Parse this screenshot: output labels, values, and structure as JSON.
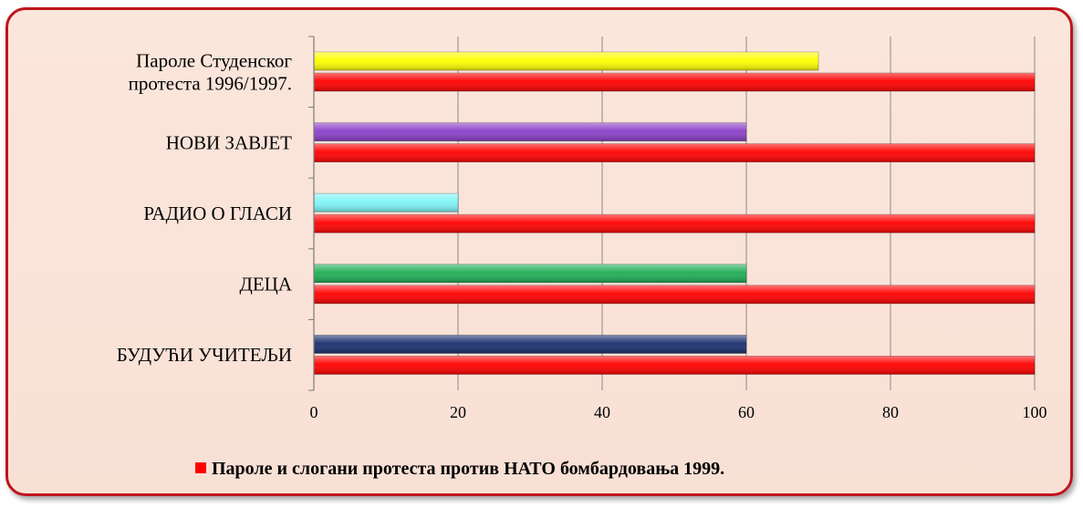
{
  "chart_data": {
    "type": "bar",
    "orientation": "horizontal",
    "xlim": [
      0,
      100
    ],
    "x_ticks": [
      "0",
      "20",
      "40",
      "60",
      "80",
      "100"
    ],
    "grid": true,
    "legend_position": "bottom",
    "categories": [
      {
        "label_lines": [
          "Пароле Студенског",
          "протеста 1996/1997."
        ],
        "value": 70,
        "color": "#ffff00"
      },
      {
        "label_lines": [
          "НОВИ ЗАВЈЕТ"
        ],
        "value": 60,
        "color": "#8a3fc8"
      },
      {
        "label_lines": [
          "РАДИО О ГЛАСИ"
        ],
        "value": 20,
        "color": "#7ff5f8"
      },
      {
        "label_lines": [
          "ДЕЦА"
        ],
        "value": 60,
        "color": "#1fae55"
      },
      {
        "label_lines": [
          "БУДУЋИ УЧИТЕЉИ"
        ],
        "value": 60,
        "color": "#1a2f6e"
      }
    ],
    "series": [
      {
        "name": "Пароле и слогани протеста против НАТО бомбардовања 1999.",
        "values": [
          100,
          100,
          100,
          100,
          100
        ],
        "color": "#ff0000"
      }
    ]
  }
}
